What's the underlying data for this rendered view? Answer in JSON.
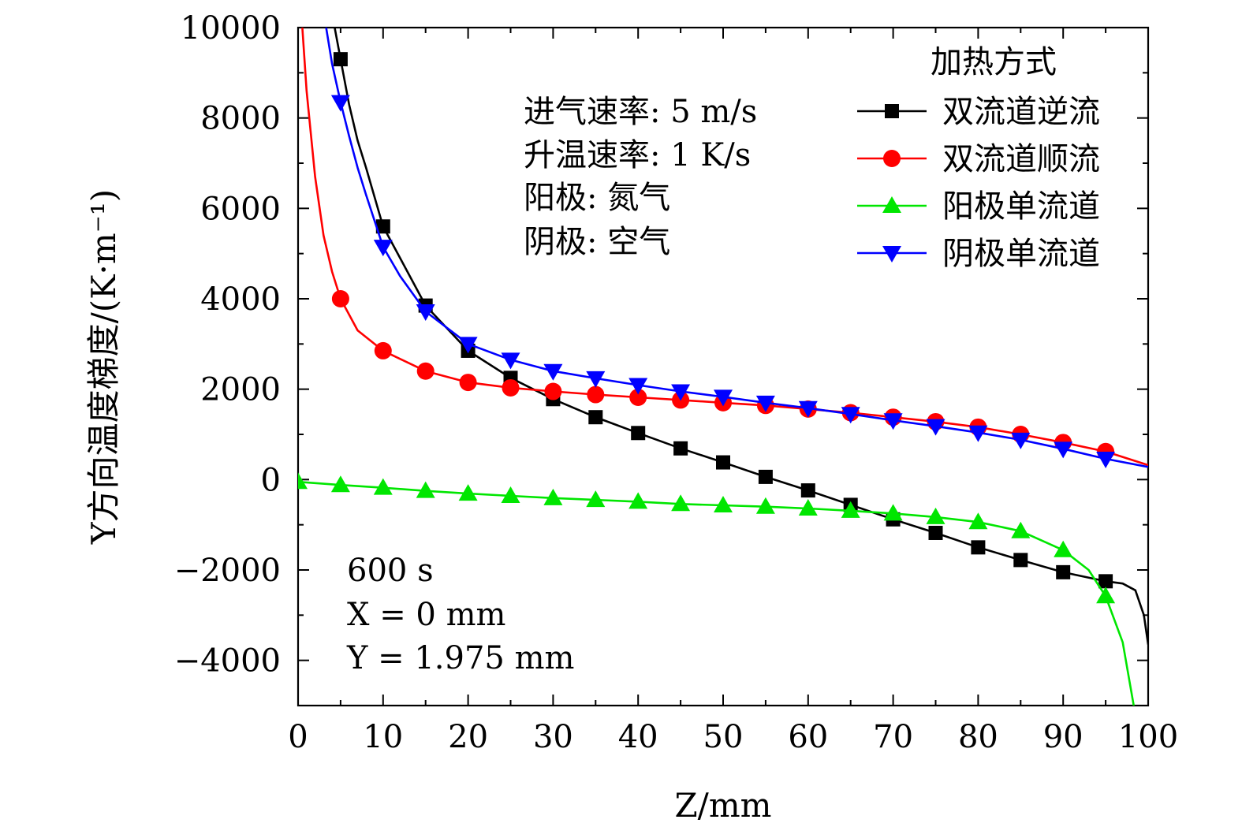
{
  "chart_data": {
    "type": "line",
    "xlabel": "Z/mm",
    "ylabel": "Y方向温度梯度/(K·m⁻¹)",
    "xlim": [
      0,
      100
    ],
    "ylim": [
      -5000,
      10000
    ],
    "xticks": [
      0,
      10,
      20,
      30,
      40,
      50,
      60,
      70,
      80,
      90,
      100
    ],
    "xtick_labels": [
      "0",
      "10",
      "20",
      "30",
      "40",
      "50",
      "60",
      "70",
      "80",
      "90",
      "100"
    ],
    "yticks": [
      -4000,
      -2000,
      0,
      2000,
      4000,
      6000,
      8000,
      10000
    ],
    "ytick_labels": [
      "−4000",
      "−2000",
      "0",
      "2000",
      "4000",
      "6000",
      "8000",
      "10000"
    ],
    "grid": false,
    "legend_title": "加热方式",
    "legend_position": "top-right",
    "conditions": [
      "进气速率: 5 m/s",
      "升温速率: 1 K/s",
      "阳极: 氮气",
      "阴极: 空气"
    ],
    "annotations": [
      "600 s",
      "X = 0 mm",
      "Y = 1.975 mm"
    ],
    "series": [
      {
        "name": "双流道逆流",
        "color": "#000000",
        "marker": "square",
        "x": [
          5,
          10,
          15,
          20,
          25,
          30,
          35,
          40,
          45,
          50,
          55,
          60,
          65,
          70,
          75,
          80,
          85,
          90,
          95
        ],
        "values": [
          9300,
          5600,
          3850,
          2850,
          2250,
          1780,
          1380,
          1030,
          690,
          380,
          60,
          -240,
          -560,
          -880,
          -1180,
          -1500,
          -1780,
          -2050,
          -2250
        ],
        "curve_x": [
          4.3,
          5,
          6,
          7,
          8,
          10,
          12,
          15,
          20,
          25,
          30,
          35,
          40,
          45,
          50,
          55,
          60,
          65,
          70,
          75,
          80,
          85,
          90,
          95,
          97,
          98.5,
          99.5,
          100
        ],
        "curve_y": [
          10000,
          9300,
          8300,
          7500,
          6900,
          5600,
          4900,
          3850,
          2850,
          2250,
          1780,
          1380,
          1030,
          690,
          380,
          60,
          -240,
          -560,
          -880,
          -1180,
          -1500,
          -1780,
          -2050,
          -2250,
          -2300,
          -2450,
          -3000,
          -3650
        ]
      },
      {
        "name": "双流道顺流",
        "color": "#ff0000",
        "marker": "circle",
        "x": [
          5,
          10,
          15,
          20,
          25,
          30,
          35,
          40,
          45,
          50,
          55,
          60,
          65,
          70,
          75,
          80,
          85,
          90,
          95
        ],
        "values": [
          4000,
          2850,
          2400,
          2150,
          2030,
          1950,
          1880,
          1820,
          1760,
          1700,
          1640,
          1560,
          1480,
          1380,
          1280,
          1160,
          1000,
          820,
          620
        ],
        "curve_x": [
          0.5,
          1,
          2,
          3,
          4,
          5,
          7,
          10,
          15,
          20,
          25,
          30,
          35,
          40,
          45,
          50,
          55,
          60,
          65,
          70,
          75,
          80,
          85,
          90,
          95,
          100
        ],
        "curve_y": [
          10000,
          8600,
          6700,
          5400,
          4600,
          4000,
          3300,
          2850,
          2400,
          2150,
          2030,
          1950,
          1880,
          1820,
          1760,
          1700,
          1640,
          1560,
          1480,
          1380,
          1280,
          1160,
          1000,
          820,
          620,
          320
        ]
      },
      {
        "name": "阳极单流道",
        "color": "#00e600",
        "marker": "triangle-up",
        "x": [
          0,
          5,
          10,
          15,
          20,
          25,
          30,
          35,
          40,
          45,
          50,
          55,
          60,
          65,
          70,
          75,
          80,
          85,
          90,
          95
        ],
        "values": [
          -50,
          -120,
          -180,
          -250,
          -310,
          -360,
          -410,
          -450,
          -490,
          -540,
          -570,
          -600,
          -640,
          -690,
          -750,
          -830,
          -940,
          -1140,
          -1560,
          -2580
        ],
        "curve_x": [
          0,
          5,
          10,
          15,
          20,
          25,
          30,
          35,
          40,
          45,
          50,
          55,
          60,
          65,
          70,
          75,
          80,
          85,
          90,
          93,
          95,
          97,
          98.3
        ],
        "curve_y": [
          -50,
          -120,
          -180,
          -250,
          -310,
          -360,
          -410,
          -450,
          -490,
          -540,
          -570,
          -600,
          -640,
          -690,
          -750,
          -830,
          -940,
          -1140,
          -1560,
          -2000,
          -2580,
          -3600,
          -5000
        ]
      },
      {
        "name": "阴极单流道",
        "color": "#0000ff",
        "marker": "triangle-down",
        "x": [
          5,
          10,
          15,
          20,
          25,
          30,
          35,
          40,
          45,
          50,
          55,
          60,
          65,
          70,
          75,
          80,
          85,
          90,
          95
        ],
        "values": [
          8350,
          5150,
          3720,
          3000,
          2650,
          2400,
          2240,
          2090,
          1950,
          1830,
          1700,
          1580,
          1450,
          1310,
          1180,
          1040,
          880,
          680,
          460
        ],
        "curve_x": [
          3.3,
          4,
          5,
          6,
          7,
          8,
          10,
          12,
          15,
          20,
          25,
          30,
          35,
          40,
          45,
          50,
          55,
          60,
          65,
          70,
          75,
          80,
          85,
          90,
          95,
          100
        ],
        "curve_y": [
          10000,
          9200,
          8350,
          7600,
          6900,
          6300,
          5150,
          4500,
          3720,
          3000,
          2650,
          2400,
          2240,
          2090,
          1950,
          1830,
          1700,
          1580,
          1450,
          1310,
          1180,
          1040,
          880,
          680,
          460,
          280
        ]
      }
    ]
  }
}
